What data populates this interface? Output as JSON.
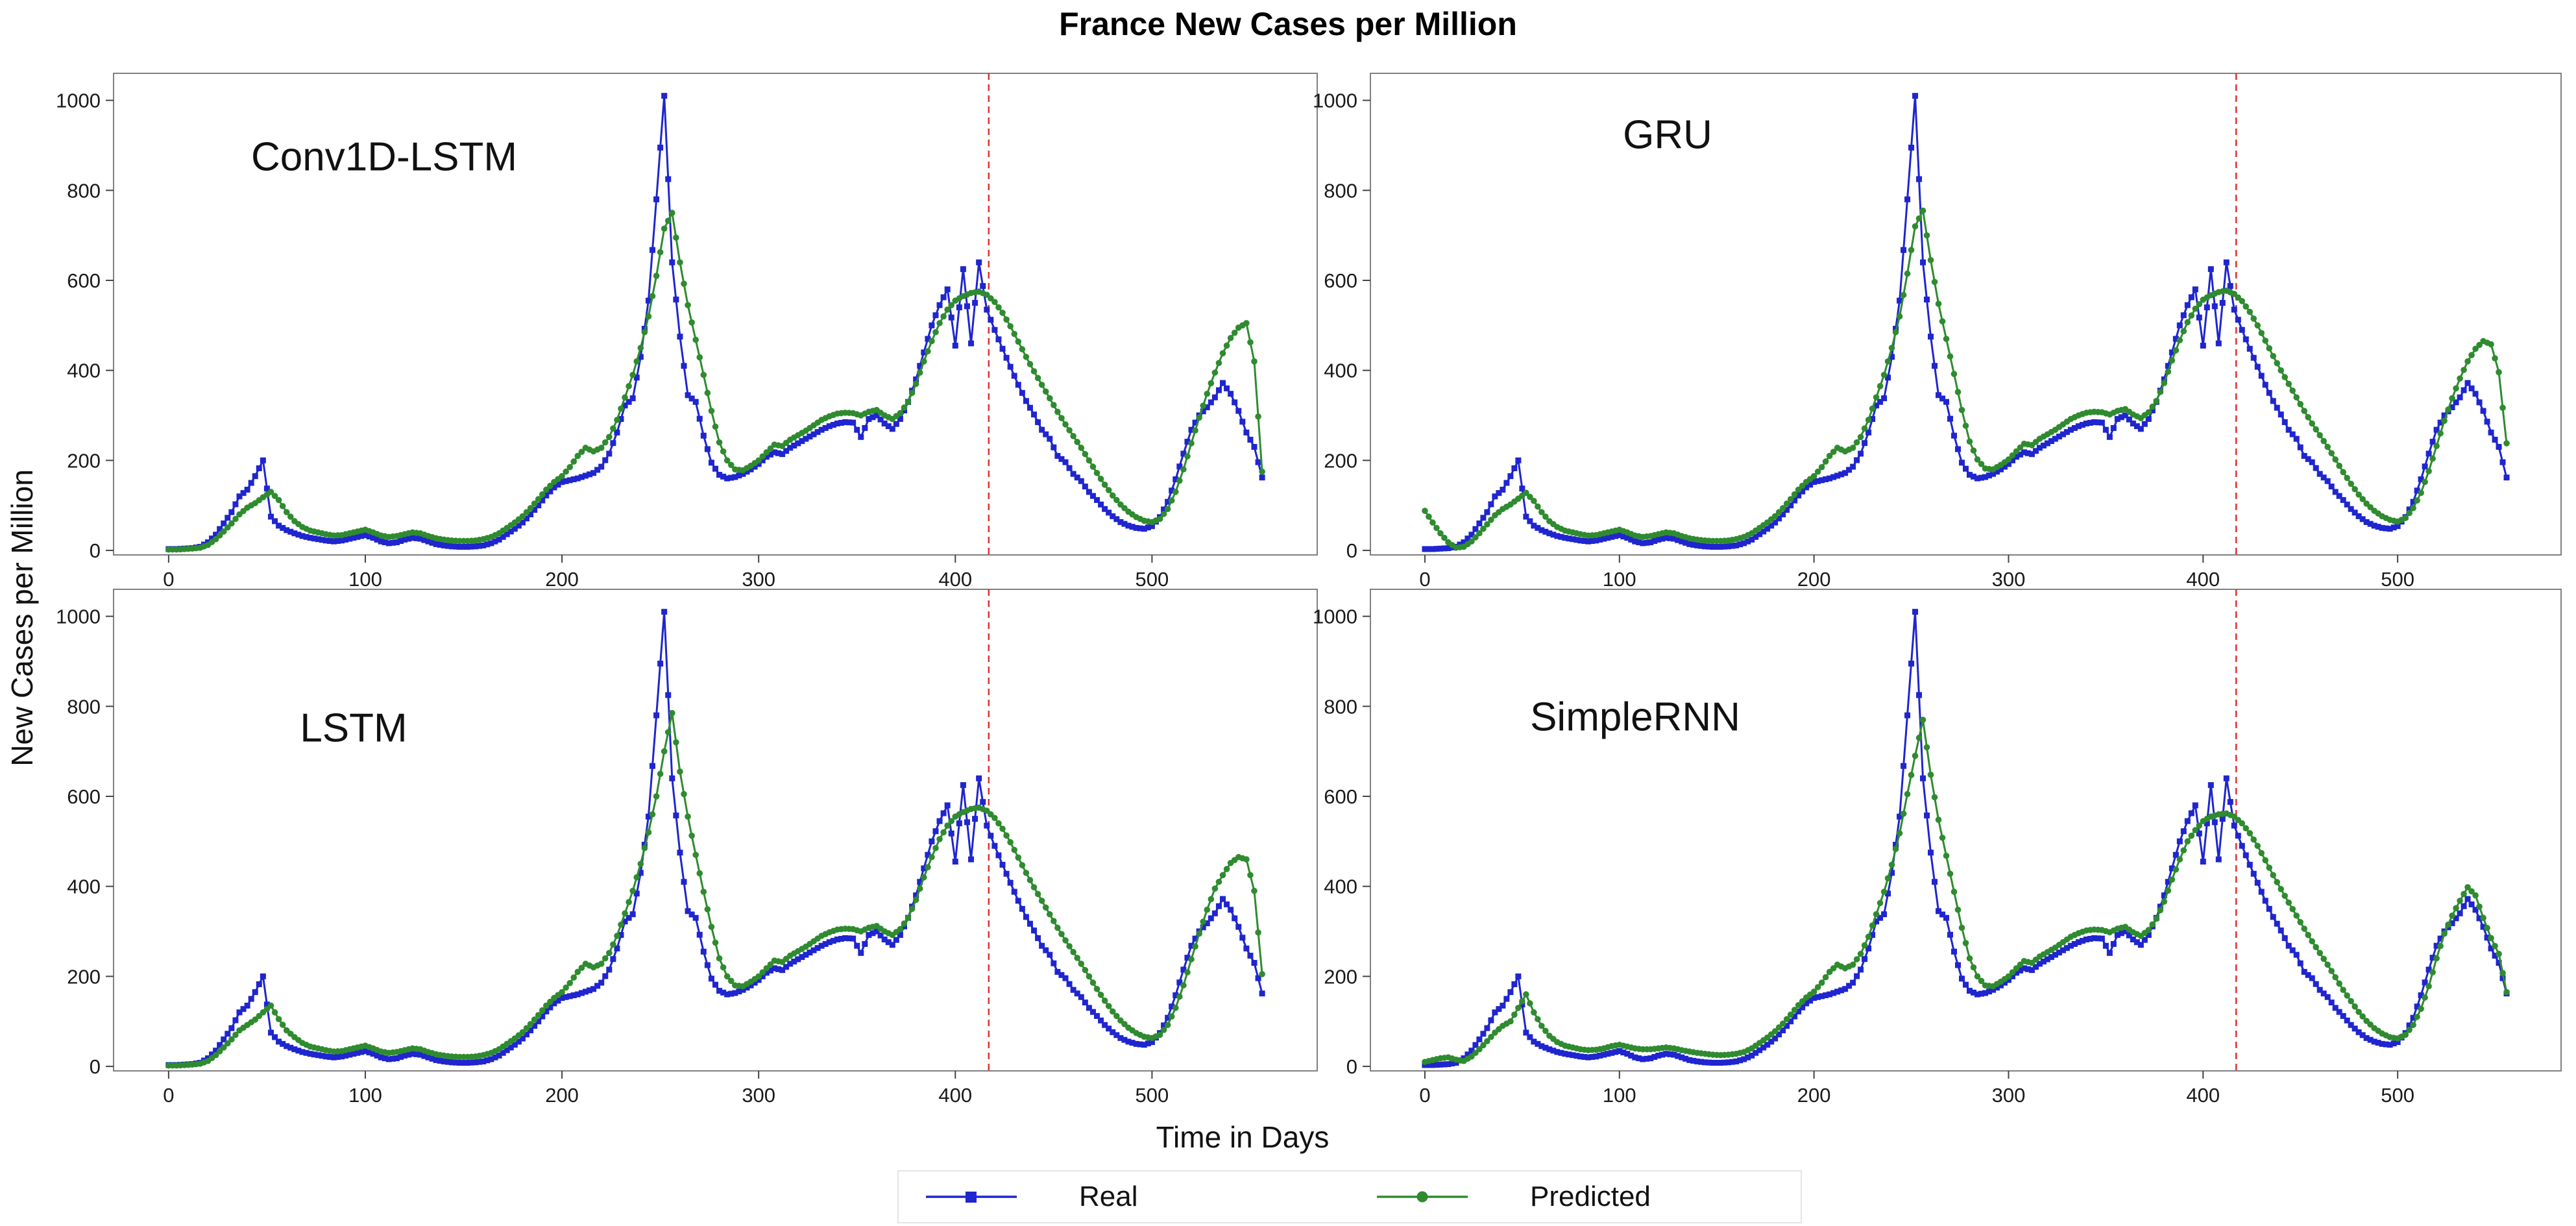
{
  "chart_data": {
    "type": "line",
    "title": "France New Cases per Million",
    "xlabel": "Time in Days",
    "ylabel": "New Cases per Million",
    "legend": [
      "Real",
      "Predicted"
    ],
    "legend_position": "bottom",
    "grid": false,
    "colors": {
      "real": "#1f25cf",
      "predicted": "#2f8b2f",
      "split_line": "#e03131",
      "axis": "#808080"
    },
    "xlim": [
      -28,
      584
    ],
    "ylim": [
      -10,
      1060
    ],
    "xticks": [
      0,
      100,
      200,
      300,
      400,
      500
    ],
    "yticks": [
      0,
      200,
      400,
      600,
      800,
      1000
    ],
    "split_line_x": 417,
    "x": [
      0,
      4,
      8,
      12,
      16,
      20,
      24,
      28,
      32,
      36,
      40,
      44,
      48,
      52,
      56,
      60,
      64,
      68,
      72,
      76,
      80,
      84,
      88,
      92,
      96,
      100,
      104,
      108,
      112,
      116,
      120,
      124,
      128,
      132,
      136,
      140,
      144,
      148,
      152,
      156,
      160,
      164,
      168,
      172,
      176,
      180,
      184,
      188,
      192,
      196,
      200,
      204,
      208,
      212,
      216,
      220,
      224,
      228,
      232,
      236,
      240,
      244,
      248,
      252,
      256,
      260,
      264,
      268,
      272,
      276,
      280,
      284,
      288,
      292,
      296,
      300,
      304,
      308,
      312,
      316,
      320,
      324,
      328,
      332,
      336,
      340,
      344,
      348,
      352,
      356,
      360,
      364,
      368,
      372,
      376,
      380,
      384,
      388,
      392,
      396,
      400,
      404,
      408,
      412,
      416,
      420,
      424,
      428,
      432,
      436,
      440,
      444,
      448,
      452,
      456,
      460,
      464,
      468,
      472,
      476,
      480,
      484,
      488,
      492,
      496,
      500,
      504,
      508,
      512,
      516,
      520,
      524,
      528,
      532,
      536,
      540,
      544,
      548,
      552,
      556
    ],
    "real": [
      3,
      3,
      4,
      5,
      8,
      18,
      35,
      60,
      85,
      120,
      135,
      165,
      200,
      75,
      55,
      45,
      38,
      32,
      28,
      25,
      22,
      20,
      22,
      26,
      30,
      34,
      28,
      20,
      16,
      18,
      24,
      28,
      26,
      20,
      14,
      11,
      9,
      8,
      8,
      9,
      11,
      16,
      24,
      36,
      48,
      62,
      80,
      100,
      122,
      140,
      152,
      156,
      160,
      166,
      172,
      186,
      215,
      262,
      322,
      338,
      430,
      555,
      780,
      1010,
      640,
      475,
      345,
      330,
      255,
      195,
      168,
      160,
      163,
      170,
      180,
      192,
      208,
      218,
      214,
      228,
      238,
      248,
      258,
      268,
      276,
      282,
      285,
      284,
      252,
      292,
      300,
      282,
      270,
      292,
      330,
      380,
      440,
      500,
      545,
      580,
      455,
      625,
      460,
      640,
      535,
      490,
      448,
      408,
      368,
      332,
      302,
      268,
      248,
      210,
      196,
      170,
      154,
      130,
      112,
      92,
      76,
      63,
      55,
      50,
      48,
      54,
      74,
      108,
      158,
      215,
      268,
      300,
      318,
      340,
      372,
      348,
      310,
      262,
      230,
      162
    ],
    "panels": [
      {
        "name": "Conv1D-LSTM",
        "predicted": [
          2,
          2,
          3,
          4,
          6,
          12,
          25,
          42,
          60,
          80,
          95,
          105,
          118,
          130,
          112,
          85,
          65,
          52,
          44,
          40,
          36,
          33,
          34,
          38,
          42,
          46,
          40,
          33,
          30,
          32,
          36,
          40,
          38,
          32,
          27,
          24,
          22,
          21,
          21,
          22,
          25,
          30,
          38,
          50,
          62,
          76,
          94,
          114,
          135,
          152,
          165,
          185,
          210,
          228,
          220,
          228,
          252,
          290,
          340,
          390,
          450,
          520,
          610,
          715,
          750,
          640,
          545,
          468,
          390,
          310,
          240,
          200,
          180,
          178,
          188,
          200,
          218,
          235,
          232,
          246,
          256,
          266,
          278,
          290,
          298,
          304,
          306,
          305,
          300,
          308,
          312,
          300,
          292,
          305,
          330,
          370,
          420,
          465,
          505,
          535,
          555,
          565,
          572,
          575,
          568,
          552,
          528,
          498,
          464,
          430,
          398,
          368,
          338,
          308,
          280,
          254,
          228,
          200,
          172,
          146,
          122,
          102,
          86,
          74,
          66,
          63,
          70,
          92,
          130,
          180,
          238,
          295,
          348,
          395,
          438,
          472,
          495,
          505,
          420,
          175
        ]
      },
      {
        "name": "GRU",
        "predicted": [
          88,
          62,
          38,
          18,
          6,
          8,
          20,
          38,
          58,
          78,
          92,
          102,
          115,
          128,
          110,
          85,
          65,
          52,
          44,
          40,
          36,
          33,
          34,
          38,
          42,
          46,
          40,
          33,
          30,
          32,
          36,
          40,
          38,
          32,
          27,
          24,
          22,
          21,
          21,
          22,
          25,
          30,
          38,
          50,
          62,
          76,
          94,
          114,
          135,
          152,
          165,
          185,
          210,
          228,
          220,
          228,
          252,
          290,
          340,
          390,
          450,
          520,
          615,
          720,
          755,
          645,
          548,
          470,
          392,
          312,
          242,
          202,
          182,
          180,
          190,
          202,
          220,
          237,
          234,
          248,
          258,
          268,
          280,
          292,
          300,
          306,
          308,
          307,
          302,
          310,
          314,
          302,
          294,
          307,
          332,
          372,
          422,
          467,
          507,
          537,
          557,
          567,
          574,
          577,
          570,
          554,
          530,
          500,
          466,
          432,
          400,
          370,
          340,
          310,
          282,
          256,
          230,
          202,
          174,
          148,
          124,
          104,
          88,
          76,
          68,
          64,
          72,
          94,
          128,
          176,
          232,
          288,
          338,
          382,
          420,
          448,
          465,
          458,
          396,
          238
        ]
      },
      {
        "name": "LSTM",
        "predicted": [
          2,
          2,
          3,
          4,
          6,
          12,
          25,
          42,
          60,
          80,
          92,
          104,
          120,
          135,
          105,
          80,
          65,
          52,
          44,
          40,
          36,
          33,
          34,
          38,
          42,
          46,
          40,
          33,
          30,
          32,
          36,
          40,
          38,
          32,
          27,
          24,
          22,
          21,
          21,
          22,
          25,
          30,
          38,
          50,
          62,
          76,
          94,
          114,
          135,
          152,
          165,
          185,
          210,
          228,
          220,
          228,
          252,
          290,
          340,
          390,
          450,
          520,
          600,
          700,
          785,
          655,
          555,
          470,
          388,
          310,
          240,
          200,
          180,
          178,
          188,
          200,
          218,
          235,
          232,
          246,
          256,
          266,
          278,
          290,
          298,
          304,
          306,
          305,
          300,
          308,
          312,
          300,
          292,
          305,
          330,
          370,
          420,
          465,
          505,
          535,
          555,
          565,
          572,
          575,
          568,
          552,
          528,
          498,
          464,
          430,
          398,
          368,
          338,
          308,
          280,
          254,
          228,
          200,
          172,
          146,
          122,
          102,
          86,
          74,
          66,
          63,
          70,
          92,
          130,
          180,
          238,
          295,
          348,
          395,
          425,
          452,
          465,
          460,
          390,
          205
        ]
      },
      {
        "name": "SimpleRNN",
        "predicted": [
          10,
          14,
          18,
          20,
          15,
          12,
          22,
          38,
          56,
          75,
          90,
          100,
          130,
          160,
          120,
          90,
          68,
          54,
          46,
          42,
          38,
          36,
          37,
          40,
          45,
          48,
          44,
          40,
          38,
          38,
          40,
          42,
          40,
          36,
          33,
          30,
          28,
          26,
          25,
          26,
          28,
          32,
          40,
          52,
          64,
          78,
          95,
          115,
          136,
          153,
          166,
          186,
          210,
          226,
          218,
          226,
          250,
          288,
          338,
          388,
          448,
          518,
          605,
          690,
          770,
          648,
          548,
          468,
          388,
          308,
          240,
          200,
          180,
          178,
          188,
          200,
          218,
          234,
          230,
          244,
          254,
          264,
          276,
          288,
          296,
          302,
          304,
          303,
          298,
          306,
          310,
          298,
          290,
          303,
          328,
          366,
          415,
          460,
          500,
          525,
          545,
          555,
          560,
          562,
          555,
          540,
          518,
          490,
          458,
          425,
          394,
          364,
          335,
          306,
          278,
          252,
          226,
          198,
          170,
          145,
          121,
          101,
          85,
          73,
          65,
          62,
          70,
          92,
          128,
          178,
          240,
          295,
          335,
          368,
          398,
          380,
          330,
          285,
          250,
          165
        ]
      }
    ]
  }
}
